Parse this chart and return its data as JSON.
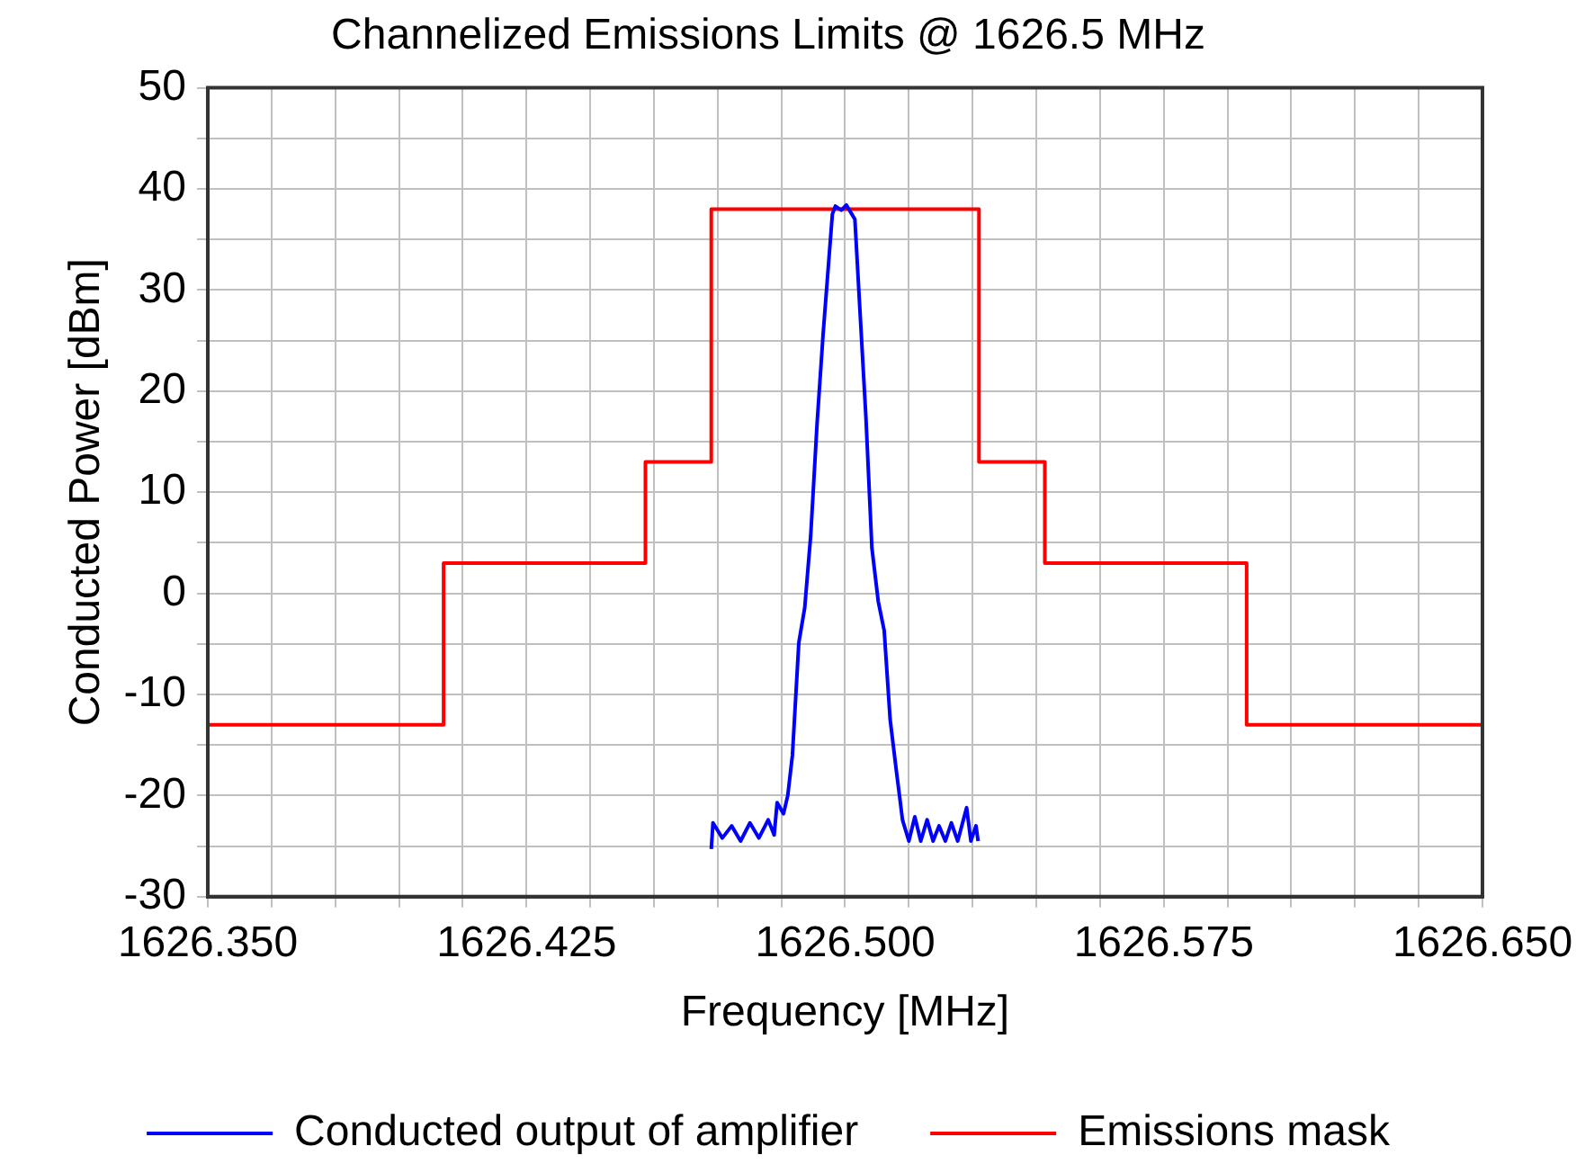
{
  "chart_data": {
    "type": "line",
    "title": "Channelized Emissions Limits @ 1626.5 MHz",
    "xlabel": "Frequency [MHz]",
    "ylabel": "Conducted Power [dBm]",
    "xlim": [
      1626.35,
      1626.65
    ],
    "xticks": [
      {
        "value": 1626.35,
        "label": "1626.350"
      },
      {
        "value": 1626.365,
        "label": null
      },
      {
        "value": 1626.38,
        "label": null
      },
      {
        "value": 1626.395,
        "label": null
      },
      {
        "value": 1626.41,
        "label": null
      },
      {
        "value": 1626.425,
        "label": "1626.425"
      },
      {
        "value": 1626.44,
        "label": null
      },
      {
        "value": 1626.455,
        "label": null
      },
      {
        "value": 1626.47,
        "label": null
      },
      {
        "value": 1626.485,
        "label": null
      },
      {
        "value": 1626.5,
        "label": "1626.500"
      },
      {
        "value": 1626.515,
        "label": null
      },
      {
        "value": 1626.53,
        "label": null
      },
      {
        "value": 1626.545,
        "label": null
      },
      {
        "value": 1626.56,
        "label": null
      },
      {
        "value": 1626.575,
        "label": "1626.575"
      },
      {
        "value": 1626.59,
        "label": null
      },
      {
        "value": 1626.605,
        "label": null
      },
      {
        "value": 1626.62,
        "label": null
      },
      {
        "value": 1626.635,
        "label": null
      },
      {
        "value": 1626.65,
        "label": "1626.650"
      }
    ],
    "ylim": [
      -30,
      50
    ],
    "yticks": [
      -30,
      {
        "value": -25,
        "label": null
      },
      -20,
      {
        "value": -15,
        "label": null
      },
      -10,
      {
        "value": -5,
        "label": null
      },
      0,
      {
        "value": 5,
        "label": null
      },
      10,
      {
        "value": 15,
        "label": null
      },
      20,
      {
        "value": 25,
        "label": null
      },
      30,
      {
        "value": 35,
        "label": null
      },
      40,
      {
        "value": 45,
        "label": null
      },
      50
    ],
    "grid": true,
    "legend": "bottom",
    "marker": "none",
    "line_style": "solid",
    "series": [
      {
        "name": "Conducted output of amplifier",
        "color": "#0000ff",
        "type": "line",
        "x": [
          1626.4685,
          1626.4689,
          1626.4711,
          1626.4733,
          1626.4754,
          1626.4776,
          1626.4797,
          1626.4819,
          1626.4833,
          1626.484,
          1626.4855,
          1626.4865,
          1626.4876,
          1626.4891,
          1626.4905,
          1626.4919,
          1626.4934,
          1626.4948,
          1626.4963,
          1626.497,
          1626.4977,
          1626.4991,
          1626.5003,
          1626.5013,
          1626.5023,
          1626.5035,
          1626.5049,
          1626.5063,
          1626.5078,
          1626.5092,
          1626.5106,
          1626.5121,
          1626.5128,
          1626.5135,
          1626.515,
          1626.5164,
          1626.5178,
          1626.5193,
          1626.5207,
          1626.5221,
          1626.5236,
          1626.525,
          1626.5265,
          1626.5286,
          1626.5296,
          1626.5308,
          1626.5313
        ],
        "values": [
          -25.3,
          -22.7,
          -24.2,
          -23,
          -24.5,
          -22.7,
          -24.2,
          -22.4,
          -23.9,
          -20.7,
          -21.8,
          -20,
          -16,
          -4.9,
          -1.4,
          5.7,
          16.8,
          25.5,
          33.7,
          37.5,
          38.3,
          37.9,
          38.4,
          37.7,
          37,
          27.9,
          17.4,
          4.5,
          -0.8,
          -3.7,
          -12.5,
          -17.7,
          -20,
          -22.4,
          -24.5,
          -22.1,
          -24.5,
          -22.4,
          -24.5,
          -23,
          -24.5,
          -22.7,
          -24.5,
          -21.2,
          -24.5,
          -23,
          -24.5
        ]
      },
      {
        "name": "Emissions mask",
        "color": "#ff0000",
        "type": "step",
        "x": [
          1626.35,
          1626.4055,
          1626.453,
          1626.4685,
          1626.5315,
          1626.547,
          1626.5945,
          1626.65
        ],
        "values": [
          -13,
          3,
          13,
          38,
          13,
          3,
          -13,
          -13
        ]
      }
    ]
  }
}
